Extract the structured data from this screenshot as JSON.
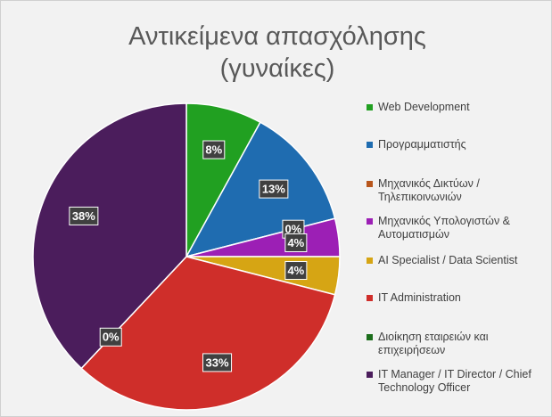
{
  "chart_data": {
    "type": "pie",
    "title": "Αντικείμενα απασχόλησης (γυναίκες)",
    "categories": [
      "Web Development",
      "Προγραμματιστής",
      "Μηχανικός Δικτύων / Τηλεπικοινωνιών",
      "Μηχανικός Υπολογιστών  & Αυτοματισμών",
      "AI Specialist / Data Scientist",
      "IT Administration",
      "Διοίκηση εταιρειών και επιχειρήσεων",
      "IT Manager / IT Director / Chief Technology Officer"
    ],
    "values": [
      8,
      13,
      0,
      4,
      4,
      33,
      0,
      38
    ],
    "value_labels": [
      "8%",
      "13%",
      "0%",
      "4%",
      "4%",
      "33%",
      "0%",
      "38%"
    ],
    "colors": [
      "#21a021",
      "#1f6cb0",
      "#b8561c",
      "#9c1fb5",
      "#d6a514",
      "#cf2e2a",
      "#1c6e1c",
      "#4b1d5c"
    ]
  }
}
